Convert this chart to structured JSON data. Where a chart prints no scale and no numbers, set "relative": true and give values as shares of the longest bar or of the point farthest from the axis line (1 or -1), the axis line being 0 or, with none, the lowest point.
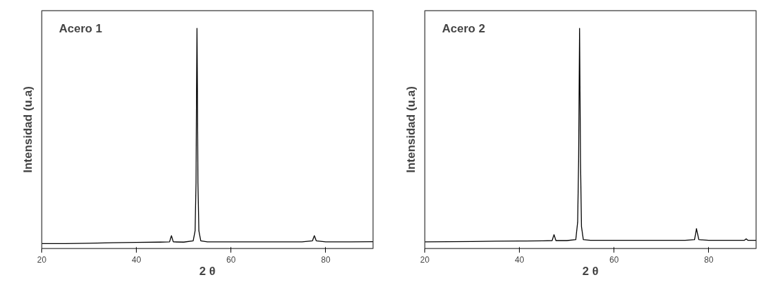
{
  "chart_data": [
    {
      "type": "line",
      "title": "Acero 1",
      "xlabel": "2 θ",
      "ylabel": "Intensidad (u.a)",
      "relative": true,
      "xlim": [
        20,
        90
      ],
      "xticks": [
        20,
        40,
        60,
        80
      ],
      "tick_labels": "x",
      "grid": false,
      "marker": "none",
      "line_style": "solid",
      "series": [
        {
          "color": "#000000",
          "x": [
            20,
            25,
            30,
            35,
            40,
            45,
            47.0,
            47.4,
            47.8,
            50,
            52.0,
            52.4,
            52.6,
            52.7,
            52.8,
            52.9,
            53.0,
            53.2,
            53.6,
            55,
            60,
            65,
            70,
            75,
            77.2,
            77.6,
            78.0,
            80,
            85,
            90
          ],
          "values": [
            0.022,
            0.022,
            0.024,
            0.026,
            0.028,
            0.029,
            0.03,
            0.058,
            0.03,
            0.029,
            0.035,
            0.08,
            0.3,
            0.7,
            1,
            0.7,
            0.3,
            0.08,
            0.035,
            0.03,
            0.03,
            0.03,
            0.03,
            0.03,
            0.035,
            0.058,
            0.035,
            0.03,
            0.03,
            0.031
          ]
        }
      ]
    },
    {
      "type": "line",
      "title": "Acero 2",
      "xlabel": "2 θ",
      "ylabel": "Intensidad (u.a)",
      "relative": true,
      "xlim": [
        20,
        90
      ],
      "xticks": [
        20,
        40,
        60,
        80
      ],
      "tick_labels": "x",
      "grid": false,
      "marker": "none",
      "line_style": "solid",
      "series": [
        {
          "color": "#000000",
          "x": [
            20,
            25,
            30,
            35,
            40,
            45,
            46.9,
            47.3,
            47.7,
            50,
            51.9,
            52.3,
            52.5,
            52.6,
            52.7,
            52.8,
            52.9,
            53.1,
            53.5,
            55,
            60,
            65,
            70,
            75,
            77.0,
            77.4,
            77.9,
            80,
            85,
            87.5,
            87.9,
            88.3,
            90
          ],
          "values": [
            0.03,
            0.031,
            0.032,
            0.033,
            0.034,
            0.035,
            0.036,
            0.063,
            0.036,
            0.036,
            0.04,
            0.12,
            0.4,
            0.7,
            1,
            0.7,
            0.4,
            0.1,
            0.04,
            0.037,
            0.037,
            0.037,
            0.037,
            0.037,
            0.04,
            0.09,
            0.04,
            0.037,
            0.037,
            0.037,
            0.044,
            0.037,
            0.037
          ]
        }
      ]
    }
  ]
}
